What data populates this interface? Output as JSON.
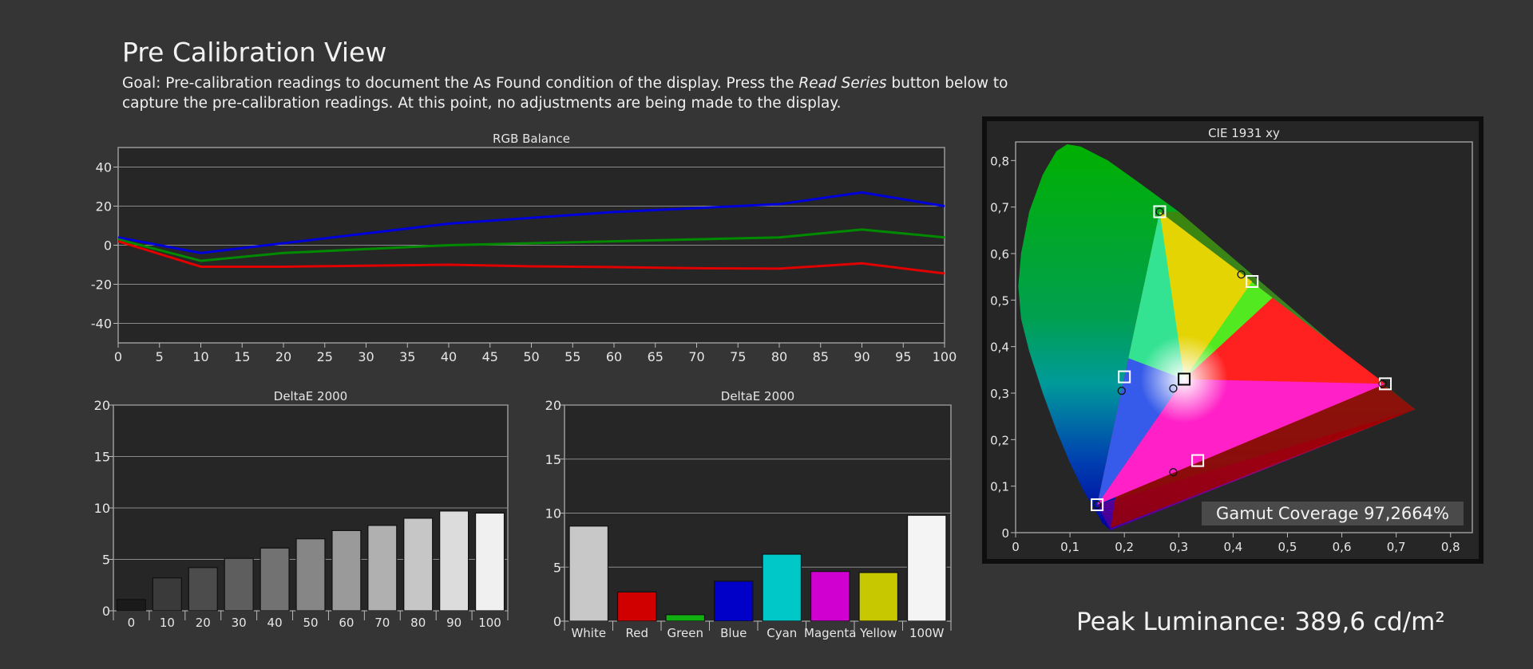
{
  "page": {
    "title": "Pre Calibration View",
    "goal_prefix": "Goal: Pre-calibration readings to document the As Found condition of the display. Press the ",
    "goal_emphasis": "Read Series",
    "goal_suffix": " button below to capture the pre-calibration readings. At this point, no adjustments are being made to the display.",
    "gamut_coverage": "Gamut Coverage 97,2664%",
    "peak_luminance": "Peak Luminance: 389,6 cd/m²"
  },
  "colors": {
    "red": "#e00000",
    "green": "#008a00",
    "blue": "#0000dd",
    "background": "#353535",
    "panel": "#262626"
  },
  "chart_data": [
    {
      "type": "line",
      "title": "RGB Balance",
      "x": [
        0,
        10,
        20,
        30,
        40,
        50,
        60,
        70,
        80,
        90,
        100
      ],
      "x_ticks": [
        0,
        5,
        10,
        15,
        20,
        25,
        30,
        35,
        40,
        45,
        50,
        55,
        60,
        65,
        70,
        75,
        80,
        85,
        90,
        95,
        100
      ],
      "y_ticks": [
        40,
        20,
        0,
        -20,
        -40
      ],
      "xlim": [
        0,
        100
      ],
      "ylim": [
        -50,
        50
      ],
      "series": [
        {
          "color": "#0000dd",
          "values": [
            4,
            -4,
            1,
            6,
            11,
            14,
            17,
            19,
            21,
            27,
            20
          ]
        },
        {
          "color": "#008a00",
          "values": [
            3,
            -8,
            -4,
            -2,
            0,
            1,
            2,
            3,
            4,
            8,
            4
          ]
        },
        {
          "color": "#e00000",
          "values": [
            2,
            -11,
            -11,
            -10.5,
            -10,
            -10.8,
            -11.2,
            -11.8,
            -12,
            -9.3,
            -14.5
          ]
        }
      ],
      "grid": true
    },
    {
      "type": "bar",
      "title": "DeltaE 2000",
      "categories": [
        "0",
        "10",
        "20",
        "30",
        "40",
        "50",
        "60",
        "70",
        "80",
        "90",
        "100"
      ],
      "values": [
        1.1,
        3.2,
        4.2,
        5.1,
        6.1,
        7.0,
        7.8,
        8.3,
        9.0,
        9.7,
        9.5
      ],
      "ylim": [
        0,
        20
      ],
      "y_ticks": [
        20,
        15,
        10,
        5,
        0
      ],
      "bar_colors": [
        "#1a1a1a",
        "#3a3a3a",
        "#4c4c4c",
        "#5e5e5e",
        "#727272",
        "#868686",
        "#9a9a9a",
        "#b0b0b0",
        "#c6c6c6",
        "#dcdcdc",
        "#f0f0f0"
      ]
    },
    {
      "type": "bar",
      "title": "DeltaE 2000",
      "categories": [
        "White",
        "Red",
        "Green",
        "Blue",
        "Cyan",
        "Magenta",
        "Yellow",
        "100W"
      ],
      "values": [
        8.8,
        2.7,
        0.6,
        3.7,
        6.2,
        4.6,
        4.5,
        9.8
      ],
      "ylim": [
        0,
        20
      ],
      "y_ticks": [
        20,
        15,
        10,
        5,
        0
      ],
      "bar_colors": [
        "#c8c8c8",
        "#d10000",
        "#10b010",
        "#0000c8",
        "#00c8c8",
        "#d000d0",
        "#c8c800",
        "#f4f4f4"
      ]
    },
    {
      "type": "scatter",
      "title": "CIE 1931 xy",
      "x_ticks": [
        "0",
        "0,1",
        "0,2",
        "0,3",
        "0,4",
        "0,5",
        "0,6",
        "0,7",
        "0,8"
      ],
      "y_ticks": [
        "0",
        "0,1",
        "0,2",
        "0,3",
        "0,4",
        "0,5",
        "0,6",
        "0,7",
        "0,8"
      ],
      "xlim": [
        0,
        0.84
      ],
      "ylim": [
        0,
        0.84
      ],
      "target_squares": [
        {
          "x": 0.265,
          "y": 0.69
        },
        {
          "x": 0.435,
          "y": 0.54
        },
        {
          "x": 0.68,
          "y": 0.32
        },
        {
          "x": 0.31,
          "y": 0.33
        },
        {
          "x": 0.2,
          "y": 0.335
        },
        {
          "x": 0.335,
          "y": 0.155
        },
        {
          "x": 0.15,
          "y": 0.06
        }
      ],
      "measured_points": [
        {
          "x": 0.265,
          "y": 0.69
        },
        {
          "x": 0.415,
          "y": 0.555
        },
        {
          "x": 0.675,
          "y": 0.32
        },
        {
          "x": 0.29,
          "y": 0.31
        },
        {
          "x": 0.195,
          "y": 0.305
        },
        {
          "x": 0.29,
          "y": 0.13
        },
        {
          "x": 0.15,
          "y": 0.06
        }
      ],
      "triangle_measured": [
        {
          "x": 0.265,
          "y": 0.69
        },
        {
          "x": 0.68,
          "y": 0.32
        },
        {
          "x": 0.15,
          "y": 0.06
        }
      ],
      "triangle_reference": [
        {
          "x": 0.265,
          "y": 0.69
        },
        {
          "x": 0.735,
          "y": 0.265
        },
        {
          "x": 0.175,
          "y": 0.01
        }
      ]
    }
  ]
}
